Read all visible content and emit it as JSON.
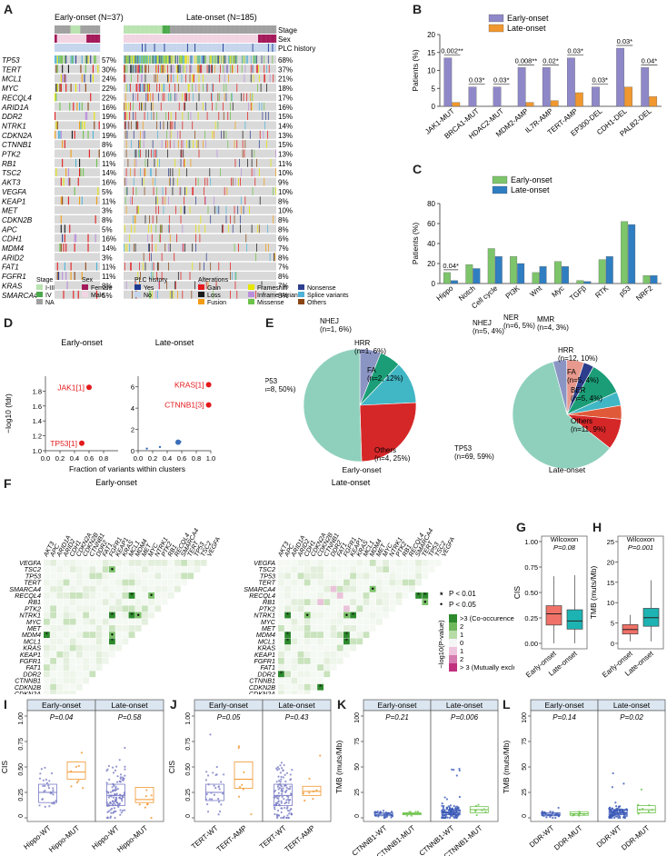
{
  "panel_letters": {
    "A": "A",
    "B": "B",
    "C": "C",
    "D": "D",
    "E": "E",
    "F": "F",
    "G": "G",
    "H": "H",
    "I": "I",
    "J": "J",
    "K": "K",
    "L": "L"
  },
  "panelA": {
    "early_title": "Early-onset (N=37)",
    "late_title": "Late-onset (N=185)",
    "annot_labels": [
      "Stage",
      "Sex",
      "PLC history"
    ],
    "genes": [
      "TP53",
      "TERT",
      "MCL1",
      "MYC",
      "RECQL4",
      "ARID1A",
      "DDR2",
      "NTRK1",
      "CDKN2A",
      "CTNNB1",
      "PTK2",
      "RB1",
      "TSC2",
      "AKT3",
      "VEGFA",
      "KEAP1",
      "MET",
      "CDKN2B",
      "APC",
      "CDH1",
      "MDM4",
      "ARID2",
      "FAT1",
      "FGFR1",
      "KRAS",
      "SMARCA4"
    ],
    "early_pct": [
      "57%",
      "30%",
      "24%",
      "22%",
      "22%",
      "16%",
      "19%",
      "19%",
      "19%",
      "8%",
      "16%",
      "11%",
      "14%",
      "16%",
      "5%",
      "11%",
      "3%",
      "8%",
      "5%",
      "16%",
      "14%",
      "3%",
      "11%",
      "11%",
      "8%",
      "5%"
    ],
    "late_pct": [
      "68%",
      "37%",
      "21%",
      "18%",
      "17%",
      "16%",
      "15%",
      "14%",
      "13%",
      "15%",
      "13%",
      "11%",
      "10%",
      "9%",
      "10%",
      "8%",
      "10%",
      "8%",
      "8%",
      "6%",
      "7%",
      "8%",
      "7%",
      "8%",
      "7%",
      "8%"
    ],
    "legend": {
      "stage_title": "Stage",
      "stage_items": [
        "I-III",
        "IV",
        "NA"
      ],
      "sex_title": "Sex",
      "sex_items": [
        "Female",
        "Male"
      ],
      "plc_title": "PLC history",
      "plc_items": [
        "Yes",
        "No"
      ],
      "alt_title": "Alterations",
      "alt_items": [
        "Gain",
        "Loss",
        "Fusion",
        "Frameshift",
        "Inframe variants",
        "Missense",
        "Nonsense",
        "Splice variants",
        "Others"
      ]
    },
    "colors": {
      "gain": "#e41a1c",
      "loss": "#1a1a1a",
      "fusion": "#f39c12",
      "frameshift": "#e6e600",
      "inframe": "#b98ddc",
      "missense": "#6cc24a",
      "nonsense": "#2f3f8f",
      "splice": "#4fb3d9",
      "others": "#8b4513",
      "stage_early": "#b9e3b0",
      "stage_late": "#4aa94a",
      "stage_na": "#a0a0a0",
      "female": "#a4195a",
      "male": "#f2d4e2",
      "plc_yes": "#1f3a93",
      "plc_no": "#c5d5ec",
      "bg": "#d9d9d9"
    }
  },
  "panelB": {
    "chart_data": {
      "type": "bar",
      "categories": [
        "JAK1-MUT",
        "BRCA1-MUT",
        "HDAC2-MUT",
        "MDM2-AMP",
        "IL7R-AMP",
        "TERT-AMP",
        "EP300-DEL",
        "CDH1-DEL",
        "PALB2-DEL"
      ],
      "series": [
        {
          "name": "Early-onset",
          "values": [
            13.5,
            5.4,
            5.4,
            10.8,
            10.8,
            13.5,
            5.4,
            16.2,
            10.8
          ]
        },
        {
          "name": "Late-onset",
          "values": [
            1.1,
            0,
            0,
            1.1,
            1.6,
            3.8,
            0,
            5.4,
            2.7
          ]
        }
      ],
      "annotations": [
        "0.002**",
        "0.03*",
        "0.03*",
        "0.008**",
        "0.02*",
        "0.03*",
        "0.03*",
        "0.03*",
        "0.04*"
      ],
      "ylabel": "Patients (%)",
      "ylim": [
        0,
        20
      ],
      "yticks": [
        0,
        5,
        10,
        15,
        20
      ],
      "colors": [
        "#8e88c8",
        "#f0972f"
      ]
    }
  },
  "panelC": {
    "chart_data": {
      "type": "bar",
      "categories": [
        "Hippo",
        "Notch",
        "Cell cycle",
        "PI3K",
        "Wnt",
        "Myc",
        "TGFβ",
        "RTK",
        "p53",
        "NRF2"
      ],
      "series": [
        {
          "name": "Early-onset",
          "values": [
            11,
            19,
            35,
            27,
            11,
            22,
            3,
            24,
            62,
            8
          ]
        },
        {
          "name": "Late-onset",
          "values": [
            3,
            15,
            27,
            20,
            17,
            17,
            2,
            27,
            59,
            8
          ]
        }
      ],
      "annotations": [
        "0.04*",
        "",
        "",
        "",
        "",
        "",
        "",
        "",
        "",
        ""
      ],
      "ylabel": "Patients (%)",
      "ylim": [
        0,
        80
      ],
      "yticks": [
        0,
        20,
        40,
        60,
        80
      ],
      "colors": [
        "#7dc56b",
        "#2f7ec2"
      ]
    }
  },
  "panelD": {
    "ylabel": "−log10 (fdr)",
    "xlabel": "Fraction of variants within clusters",
    "chart_data": [
      {
        "type": "scatter",
        "title": "Early-onset",
        "x": [
          0.6,
          0.5
        ],
        "y": [
          1.85,
          1.1
        ],
        "labels": [
          "JAK1[1]",
          "TP53[1]"
        ],
        "xlim": [
          0,
          1
        ],
        "ylim": [
          1.0,
          2.0
        ],
        "yticks": [
          1.0,
          1.2,
          1.4,
          1.6,
          1.8
        ],
        "xticks": [
          0.0,
          0.2,
          0.4,
          0.6,
          0.8
        ]
      },
      {
        "type": "scatter",
        "title": "Late-onset",
        "x": [
          0.97,
          0.97,
          0.55,
          0.58,
          0.12,
          0.3
        ],
        "y": [
          6.2,
          4.3,
          0.8,
          0.85,
          0.2,
          0.35
        ],
        "labels": [
          "KRAS[1]",
          "CTNNB1[3]",
          "",
          "",
          "",
          ""
        ],
        "xlim": [
          0,
          1
        ],
        "ylim": [
          0,
          7
        ],
        "yticks": [
          0,
          2,
          4,
          6
        ],
        "xticks": [
          0.0,
          0.2,
          0.4,
          0.6,
          0.8,
          1.0
        ]
      }
    ]
  },
  "panelE": {
    "caption_early": "Early-onset",
    "caption_late": "Late-onset",
    "chart_data": [
      {
        "type": "pie",
        "title": "Early-onset",
        "labels": [
          "TP53\n(n=8, 50%)",
          "NHEJ\n(n=1, 6%)",
          "HRR\n(n=1, 6%)",
          "FA\n(n=2, 12%)",
          "Others\n(n=4, 25%)"
        ],
        "values": [
          50,
          6,
          6,
          12,
          25
        ],
        "colors": [
          "#8fd0bd",
          "#8b95c4",
          "#1b9e77",
          "#41b6c4",
          "#d62728"
        ]
      },
      {
        "type": "pie",
        "title": "Late-onset",
        "labels": [
          "TP53\n(n=69, 59%)",
          "NHEJ\n(n=5, 4%)",
          "NER\n(n=6, 5%)",
          "MMR\n(n=4, 3%)",
          "HRR\n(n=12, 10%)",
          "FA\n(n=5, 4%)",
          "BER\n(n=5, 4%)",
          "Others\n(n=11, 9%)"
        ],
        "values": [
          59,
          4,
          5,
          3,
          10,
          4,
          4,
          9
        ],
        "colors": [
          "#8fd0bd",
          "#8b95c4",
          "#e8998d",
          "#2c3e8c",
          "#1b9e77",
          "#41b6c4",
          "#e05a3a",
          "#d62728"
        ]
      }
    ],
    "label_lines": {
      "early": [
        [
          "NHEJ",
          "(n=1, 6%)"
        ],
        [
          "HRR",
          "(n=1, 6%)"
        ],
        [
          "FA",
          "(n=2, 12%)"
        ],
        [
          "TP53",
          "(n=8, 50%)"
        ],
        [
          "Others",
          "(n=4, 25%)"
        ]
      ],
      "late": [
        [
          "NHEJ",
          "(n=5, 4%)"
        ],
        [
          "NER",
          "(n=6, 5%)"
        ],
        [
          "MMR",
          "(n=4, 3%)"
        ],
        [
          "HRR",
          "(n=12, 10%)"
        ],
        [
          "FA",
          "(n=5, 4%)"
        ],
        [
          "BER",
          "(n=5, 4%)"
        ],
        [
          "Others",
          "(n=11, 9%)"
        ],
        [
          "TP53",
          "(n=69, 59%)"
        ]
      ]
    }
  },
  "panelF": {
    "title_early": "Early-onset",
    "title_late": "Late-onset",
    "genes": [
      "VEGFA",
      "TSC2",
      "TP53",
      "TERT",
      "SMARCA4",
      "RECQL4",
      "RB1",
      "PTK2",
      "NTRK1",
      "MYC",
      "MET",
      "MDM4",
      "MCL1",
      "KRAS",
      "KEAP1",
      "FGFR1",
      "FAT1",
      "DDR2",
      "CTNNB1",
      "CDKN2B",
      "CDKN2A",
      "CDH1",
      "ARID2",
      "ARID1A",
      "APC",
      "AKT3"
    ],
    "legend_star": "P < 0.01",
    "legend_dot": "P < 0.05",
    "legend_title": "−log10(P-value)",
    "legend_ticks": [
      ">3 (Co-occurence)",
      "2",
      "1",
      "0",
      "1",
      "2",
      "> 3 (Mutually exclusive)"
    ]
  },
  "panelG": {
    "chart_data": {
      "type": "box",
      "test": "Wilcoxon",
      "pvalue": "P=0.08",
      "ylabel": "CIS",
      "ylim": [
        0,
        1.0
      ],
      "yticks": [
        0.0,
        0.25,
        0.5,
        0.75,
        1.0
      ],
      "categories": [
        "Early-onset",
        "Late-onset"
      ],
      "boxes": [
        {
          "q1": 0.18,
          "median": 0.29,
          "q3": 0.37,
          "lo": 0.0,
          "hi": 0.66
        },
        {
          "q1": 0.14,
          "median": 0.22,
          "q3": 0.33,
          "lo": 0.0,
          "hi": 0.67
        }
      ],
      "colors": [
        "#f07167",
        "#1db3b3"
      ]
    }
  },
  "panelH": {
    "chart_data": {
      "type": "box",
      "test": "Wilcoxon",
      "pvalue": "P=0.001",
      "ylabel": "TMB (muts/Mb)",
      "ylim": [
        0,
        25
      ],
      "yticks": [
        0,
        5,
        10,
        15,
        20,
        25
      ],
      "categories": [
        "Early-onset",
        "Late-onset"
      ],
      "boxes": [
        {
          "q1": 2.3,
          "median": 3.4,
          "q3": 4.6,
          "lo": 0.5,
          "hi": 7.0
        },
        {
          "q1": 4.2,
          "median": 6.3,
          "q3": 8.6,
          "lo": 0.5,
          "hi": 15.5
        }
      ],
      "colors": [
        "#f07167",
        "#1db3b3"
      ]
    }
  },
  "panelI": {
    "chart_data": {
      "type": "box",
      "ylabel": "CIS",
      "ylim": [
        0,
        1.0
      ],
      "yticks": [
        "0",
        "0.25",
        "0.50",
        "0.75",
        "1.00"
      ],
      "facets": [
        {
          "title": "Early-onset",
          "pvalue": "P=0.04",
          "categories": [
            "Hippo-WT",
            "Hippo-MUT"
          ],
          "boxes": [
            {
              "q1": 0.15,
              "median": 0.25,
              "q3": 0.33
            },
            {
              "q1": 0.38,
              "median": 0.45,
              "q3": 0.55
            }
          ]
        },
        {
          "title": "Late-onset",
          "pvalue": "P=0.58",
          "categories": [
            "Hippo-WT",
            "Hippo-MUT"
          ],
          "boxes": [
            {
              "q1": 0.12,
              "median": 0.22,
              "q3": 0.33
            },
            {
              "q1": 0.15,
              "median": 0.18,
              "q3": 0.3
            }
          ]
        }
      ],
      "colors": [
        "#7b7dc6",
        "#f0972f"
      ]
    }
  },
  "panelJ": {
    "chart_data": {
      "type": "box",
      "ylabel": "CIS",
      "ylim": [
        0,
        1.0
      ],
      "yticks": [
        "0",
        "0.25",
        "0.50",
        "0.75",
        "1.00"
      ],
      "facets": [
        {
          "title": "Early-onset",
          "pvalue": "P=0.05",
          "categories": [
            "TERT-WT",
            "TERT-AMP"
          ],
          "boxes": [
            {
              "q1": 0.17,
              "median": 0.25,
              "q3": 0.33
            },
            {
              "q1": 0.29,
              "median": 0.38,
              "q3": 0.55
            }
          ]
        },
        {
          "title": "Late-onset",
          "pvalue": "P=0.43",
          "categories": [
            "TERT-WT",
            "TERT-AMP"
          ],
          "boxes": [
            {
              "q1": 0.12,
              "median": 0.22,
              "q3": 0.33
            },
            {
              "q1": 0.22,
              "median": 0.26,
              "q3": 0.31
            }
          ]
        }
      ],
      "colors": [
        "#7b7dc6",
        "#f0972f"
      ]
    }
  },
  "panelK": {
    "chart_data": {
      "type": "box",
      "ylabel": "TMB (muts/Mb)",
      "ylim": [
        0,
        100
      ],
      "yticks": [
        "0",
        "25",
        "50",
        "75",
        "100"
      ],
      "facets": [
        {
          "title": "Early-onset",
          "pvalue": "P=0.21",
          "categories": [
            "CTNNB1-WT",
            "CTNNB1-MUT"
          ],
          "boxes": [
            {
              "q1": 2,
              "median": 3.5,
              "q3": 5
            },
            {
              "q1": 3,
              "median": 4,
              "q3": 5
            }
          ]
        },
        {
          "title": "Late-onset",
          "pvalue": "P=0.006",
          "categories": [
            "CTNNB1-WT",
            "CTNNB1-MUT"
          ],
          "boxes": [
            {
              "q1": 3,
              "median": 5,
              "q3": 8
            },
            {
              "q1": 5,
              "median": 8,
              "q3": 11
            }
          ]
        }
      ],
      "colors": [
        "#3b59b6",
        "#6cc24a"
      ]
    }
  },
  "panelL": {
    "chart_data": {
      "type": "box",
      "ylabel": "TMB (muts/Mb)",
      "ylim": [
        0,
        100
      ],
      "yticks": [
        "0",
        "25",
        "50",
        "75",
        "100"
      ],
      "facets": [
        {
          "title": "Early-onset",
          "pvalue": "P=0.14",
          "categories": [
            "DDR-WT",
            "DDR-MUT"
          ],
          "boxes": [
            {
              "q1": 2,
              "median": 3.5,
              "q3": 5
            },
            {
              "q1": 2.5,
              "median": 4,
              "q3": 6
            }
          ]
        },
        {
          "title": "Late-onset",
          "pvalue": "P=0.02",
          "categories": [
            "DDR-WT",
            "DDR-MUT"
          ],
          "boxes": [
            {
              "q1": 3,
              "median": 5,
              "q3": 8
            },
            {
              "q1": 5,
              "median": 8,
              "q3": 12
            }
          ]
        }
      ],
      "colors": [
        "#3b59b6",
        "#6cc24a"
      ]
    }
  }
}
